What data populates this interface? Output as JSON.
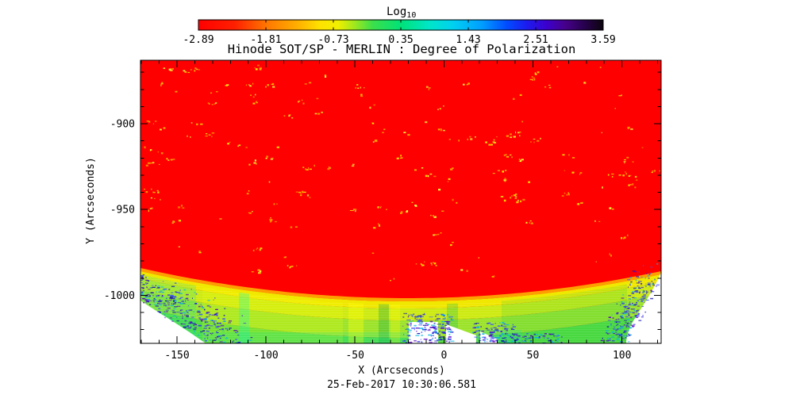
{
  "figure": {
    "title": "Hinode SOT/SP - MERLIN : Degree of Polarization",
    "xlabel": "X (Arcseconds)",
    "ylabel": "Y (Arcseconds)",
    "timestamp": "25-Feb-2017 10:30:06.581",
    "colorbar_title": "Log",
    "colorbar_title_sub": "10",
    "background": "#ffffff"
  },
  "chart_data": {
    "type": "heatmap",
    "title": "Hinode SOT/SP - MERLIN : Degree of Polarization",
    "xlabel": "X (Arcseconds)",
    "ylabel": "Y (Arcseconds)",
    "annotation": "25-Feb-2017 10:30:06.581",
    "xlim": [
      -170.5,
      122
    ],
    "ylim": [
      -1028,
      -863
    ],
    "x_major_ticks": [
      -150,
      -100,
      -50,
      0,
      50,
      100
    ],
    "x_tick_labels": [
      "-150",
      "-100",
      "-50",
      "0",
      "50",
      "100"
    ],
    "x_minor_step": 10,
    "y_major_ticks": [
      -900,
      -950,
      -1000
    ],
    "y_tick_labels": [
      "-900",
      "-950",
      "-1000"
    ],
    "y_minor_step": 10,
    "grid": false,
    "colorbar": {
      "title": "Log10",
      "orientation": "horizontal",
      "position": "top",
      "tick_labels": [
        "-2.89",
        "-1.81",
        "-0.73",
        "0.35",
        "1.43",
        "2.51",
        "3.59"
      ],
      "tick_values": [
        -2.89,
        -1.81,
        -0.73,
        0.35,
        1.43,
        2.51,
        3.59
      ],
      "palette": "rainbow: red-orange-yellow-green-cyan-blue-purple-black",
      "stops": [
        [
          0.0,
          "#ff0000"
        ],
        [
          0.09,
          "#ff2000"
        ],
        [
          0.17,
          "#ff7800"
        ],
        [
          0.25,
          "#ffb400"
        ],
        [
          0.3,
          "#ffe200"
        ],
        [
          0.345,
          "#f0f000"
        ],
        [
          0.385,
          "#a0e81e"
        ],
        [
          0.43,
          "#3ce04a"
        ],
        [
          0.5,
          "#00e278"
        ],
        [
          0.57,
          "#00e6c8"
        ],
        [
          0.63,
          "#00d0f0"
        ],
        [
          0.7,
          "#009eff"
        ],
        [
          0.76,
          "#004eff"
        ],
        [
          0.81,
          "#1c1cf0"
        ],
        [
          0.86,
          "#3c00cd"
        ],
        [
          0.905,
          "#46008c"
        ],
        [
          0.955,
          "#26004c"
        ],
        [
          1.0,
          "#0c060c"
        ]
      ]
    },
    "content": {
      "description": "Solar south-limb map of log10 degree of polarization. Upper ~73% of the frame is saturated red (values at/below -2.89) representing the solar disk, sprinkled with small yellow/orange speckle features. Below the downward-bowing limb arc (lowest near x=0, y~-1002) lie thin orange and yellow fringe bands, then a broad yellow-green/green off-limb glow with vertical striping, dissolving into blue speckle noise and white no-data regions at the lower-left corner, lower-right corner and two lower-center patches.",
      "disk_color": "#ff0000",
      "speckle_colors": [
        "#ffee00",
        "#ffd000",
        "#ff9e00",
        "#ffff40"
      ],
      "limb_band_colors": [
        "#ff9e00",
        "#f0e800",
        "#cdea12",
        "#9ce32a",
        "#55dc3e"
      ],
      "noise_colors": [
        "#2a2ae0",
        "#3c55ff",
        "#5a00c8",
        "#00b4e6",
        "#1414b4"
      ],
      "no_data_color": "#ffffff",
      "limb_y_at_left_edge": -984,
      "limb_y_at_center": -1002,
      "limb_y_at_right_edge": -986
    }
  }
}
